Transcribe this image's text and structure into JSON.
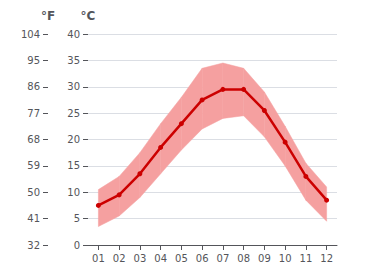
{
  "chart_data": {
    "type": "line",
    "x": [
      1,
      2,
      3,
      4,
      5,
      6,
      7,
      8,
      9,
      10,
      11,
      12
    ],
    "xlim": [
      0.5,
      12.5
    ],
    "xticks": [
      {
        "value": 1,
        "label": "01"
      },
      {
        "value": 2,
        "label": "02"
      },
      {
        "value": 3,
        "label": "03"
      },
      {
        "value": 4,
        "label": "04"
      },
      {
        "value": 5,
        "label": "05"
      },
      {
        "value": 6,
        "label": "06"
      },
      {
        "value": 7,
        "label": "07"
      },
      {
        "value": 8,
        "label": "08"
      },
      {
        "value": 9,
        "label": "09"
      },
      {
        "value": 10,
        "label": "10"
      },
      {
        "value": 11,
        "label": "11"
      },
      {
        "value": 12,
        "label": "12"
      }
    ],
    "ylabel": "°C",
    "ylim": [
      0,
      40
    ],
    "yticks": [
      0,
      5,
      10,
      15,
      20,
      25,
      30,
      35,
      40
    ],
    "y2label": "°F",
    "y2lim": [
      32,
      104
    ],
    "y2ticks": [
      32,
      41,
      50,
      59,
      68,
      77,
      86,
      95,
      104
    ],
    "grid": true,
    "series": [
      {
        "type": "band",
        "color": "#f5a0a0",
        "low": [
          3.5,
          5.5,
          9.0,
          13.5,
          18.0,
          22.0,
          24.0,
          24.5,
          20.5,
          15.0,
          8.5,
          4.5
        ],
        "high": [
          10.5,
          13.0,
          17.5,
          23.0,
          28.0,
          33.5,
          34.5,
          33.5,
          29.0,
          22.5,
          15.5,
          11.0
        ]
      },
      {
        "type": "line",
        "color": "#cc0000",
        "marker": "circle",
        "values": [
          7.5,
          9.5,
          13.5,
          18.5,
          23.0,
          27.5,
          29.5,
          29.5,
          25.5,
          19.5,
          13.0,
          8.5
        ]
      }
    ]
  }
}
